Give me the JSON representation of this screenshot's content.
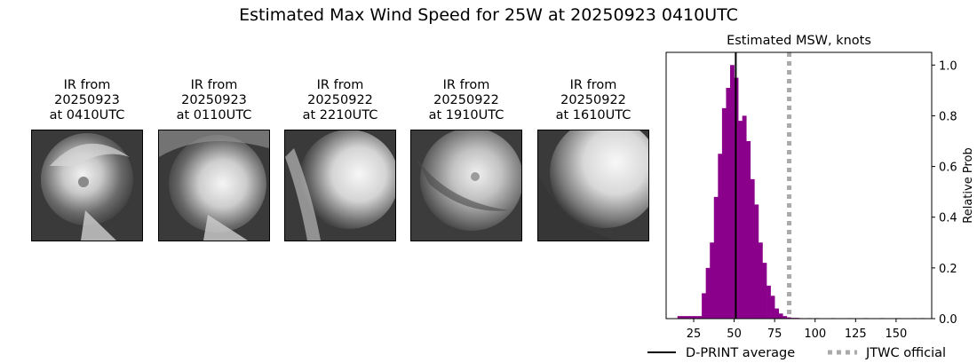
{
  "suptitle": "Estimated Max Wind Speed for 25W at 20250923 0410UTC",
  "panels": [
    {
      "line1": "IR from",
      "line2": "20250923",
      "line3": "at 0410UTC"
    },
    {
      "line1": "IR from",
      "line2": "20250923",
      "line3": "at 0110UTC"
    },
    {
      "line1": "IR from",
      "line2": "20250922",
      "line3": "at 2210UTC"
    },
    {
      "line1": "IR from",
      "line2": "20250922",
      "line3": "at 1910UTC"
    },
    {
      "line1": "IR from",
      "line2": "20250922",
      "line3": "at 1610UTC"
    }
  ],
  "chart_data": {
    "type": "bar",
    "title": "Estimated MSW, knots",
    "xlabel": "",
    "ylabel": "Relative Prob",
    "xlim": [
      8,
      172
    ],
    "ylim": [
      0,
      1.05
    ],
    "xticks": [
      25,
      50,
      75,
      100,
      125,
      150
    ],
    "yticks": [
      0.0,
      0.2,
      0.4,
      0.6,
      0.8,
      1.0
    ],
    "bin_width": 2.5,
    "bar_color": "#8b008b",
    "bins": [
      [
        15,
        0.01
      ],
      [
        17.5,
        0.01
      ],
      [
        20,
        0.01
      ],
      [
        22.5,
        0.01
      ],
      [
        25,
        0.01
      ],
      [
        27.5,
        0.01
      ],
      [
        30,
        0.1
      ],
      [
        32.5,
        0.2
      ],
      [
        35,
        0.3
      ],
      [
        37.5,
        0.48
      ],
      [
        40,
        0.65
      ],
      [
        42.5,
        0.83
      ],
      [
        45,
        0.91
      ],
      [
        47.5,
        1.0
      ],
      [
        50,
        0.95
      ],
      [
        52.5,
        0.78
      ],
      [
        55,
        0.8
      ],
      [
        57.5,
        0.7
      ],
      [
        60,
        0.55
      ],
      [
        62.5,
        0.45
      ],
      [
        65,
        0.3
      ],
      [
        67.5,
        0.22
      ],
      [
        70,
        0.13
      ],
      [
        72.5,
        0.09
      ],
      [
        75,
        0.04
      ],
      [
        77.5,
        0.02
      ],
      [
        80,
        0.01
      ],
      [
        82.5,
        0.005
      ],
      [
        85,
        0.003
      ],
      [
        87.5,
        0.003
      ],
      [
        90,
        0.002
      ],
      [
        95,
        0.002
      ],
      [
        100,
        0.002
      ],
      [
        110,
        0.002
      ],
      [
        120,
        0.002
      ],
      [
        130,
        0.002
      ],
      [
        140,
        0.002
      ],
      [
        150,
        0.002
      ],
      [
        160,
        0.002
      ],
      [
        165,
        0.002
      ]
    ],
    "dprint_average": 51,
    "jtwc_official": 84,
    "legend": {
      "placement": "bottom",
      "dprint_label": "D-PRINT average",
      "jtwc_label": "JTWC official"
    }
  }
}
